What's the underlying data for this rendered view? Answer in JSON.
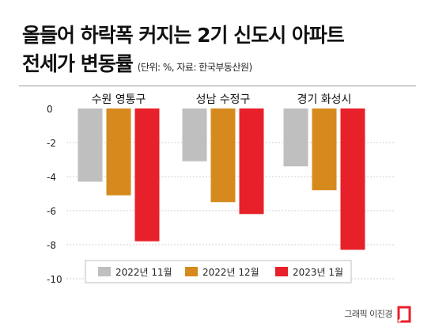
{
  "title_line1": "올들어 하락폭 커지는 2기 신도시 아파트",
  "title_line2": "전세가 변동률",
  "subtitle": "(단위: %, 자료: 한국부동산원)",
  "credit": "그래픽 이진경",
  "chart_data": {
    "type": "bar",
    "categories": [
      "수원 영통구",
      "성남 수정구",
      "경기 화성시"
    ],
    "series": [
      {
        "name": "2022년 11월",
        "values": [
          -4.3,
          -3.1,
          -3.4
        ],
        "color": "#bfbfbf"
      },
      {
        "name": "2022년 12월",
        "values": [
          -5.1,
          -5.5,
          -4.8
        ],
        "color": "#d68a1e"
      },
      {
        "name": "2023년 1월",
        "values": [
          -7.8,
          -6.2,
          -8.3
        ],
        "color": "#e8202a"
      }
    ],
    "yticks": [
      0,
      -2,
      -4,
      -6,
      -8,
      -10
    ],
    "ylim": [
      -10,
      0
    ],
    "grid": true,
    "legend": "bottom"
  }
}
